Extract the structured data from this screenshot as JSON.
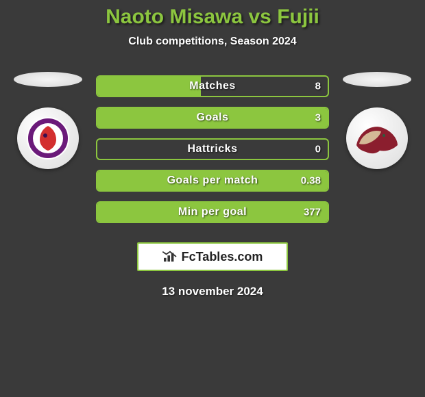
{
  "title": "Naoto Misawa vs Fujii",
  "subtitle": "Club competitions, Season 2024",
  "date": "13 november 2024",
  "branding": "FcTables.com",
  "colors": {
    "accent": "#8cc63f",
    "background": "#3a3a3a",
    "text": "#ffffff"
  },
  "left_team": {
    "crest_inner_bg": "#6b1a7a",
    "crest_accent": "#d32f2f"
  },
  "right_team": {
    "crest_inner_bg": "#ffffff",
    "crest_accent": "#8b1e2e"
  },
  "stats": [
    {
      "label": "Matches",
      "value": "8",
      "fill_pct": 45
    },
    {
      "label": "Goals",
      "value": "3",
      "fill_pct": 100
    },
    {
      "label": "Hattricks",
      "value": "0",
      "fill_pct": 0
    },
    {
      "label": "Goals per match",
      "value": "0.38",
      "fill_pct": 100
    },
    {
      "label": "Min per goal",
      "value": "377",
      "fill_pct": 100
    }
  ]
}
